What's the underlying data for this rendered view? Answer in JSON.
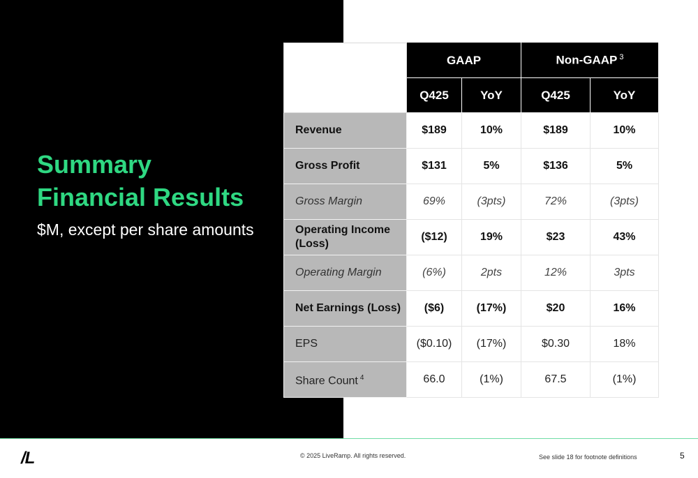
{
  "title": {
    "line1": "Summary",
    "line2": "Financial Results"
  },
  "subtitle": "$M, except per share amounts",
  "colors": {
    "accent_green": "#2fd882",
    "panel_black": "#000000",
    "label_gray": "#b8b8b8",
    "footer_rule": "#6fdca4"
  },
  "table": {
    "groups": [
      {
        "label": "GAAP",
        "footnote": ""
      },
      {
        "label": "Non-GAAP",
        "footnote": "3"
      }
    ],
    "subheaders": [
      "Q425",
      "YoY",
      "Q425",
      "YoY"
    ],
    "rows": [
      {
        "label": "Revenue",
        "footnote": "",
        "style": "bold",
        "cells": [
          "$189",
          "10%",
          "$189",
          "10%"
        ]
      },
      {
        "label": "Gross Profit",
        "footnote": "",
        "style": "bold",
        "cells": [
          "$131",
          "5%",
          "$136",
          "5%"
        ]
      },
      {
        "label": "Gross Margin",
        "footnote": "",
        "style": "italic",
        "cells": [
          "69%",
          "(3pts)",
          "72%",
          "(3pts)"
        ]
      },
      {
        "label": "Operating Income (Loss)",
        "footnote": "",
        "style": "bold",
        "cells": [
          "($12)",
          "19%",
          "$23",
          "43%"
        ]
      },
      {
        "label": "Operating Margin",
        "footnote": "",
        "style": "italic",
        "cells": [
          "(6%)",
          "2pts",
          "12%",
          "3pts"
        ]
      },
      {
        "label": "Net Earnings (Loss)",
        "footnote": "",
        "style": "bold",
        "cells": [
          "($6)",
          "(17%)",
          "$20",
          "16%"
        ]
      },
      {
        "label": "EPS",
        "footnote": "",
        "style": "plain",
        "cells": [
          "($0.10)",
          "(17%)",
          "$0.30",
          "18%"
        ]
      },
      {
        "label": "Share Count",
        "footnote": "4",
        "style": "plain",
        "cells": [
          "66.0",
          "(1%)",
          "67.5",
          "(1%)"
        ]
      }
    ]
  },
  "footer": {
    "logo": "/L",
    "copyright": "© 2025 LiveRamp. All rights reserved.",
    "footnote_ref": "See slide 18 for footnote definitions",
    "page_number": "5"
  }
}
